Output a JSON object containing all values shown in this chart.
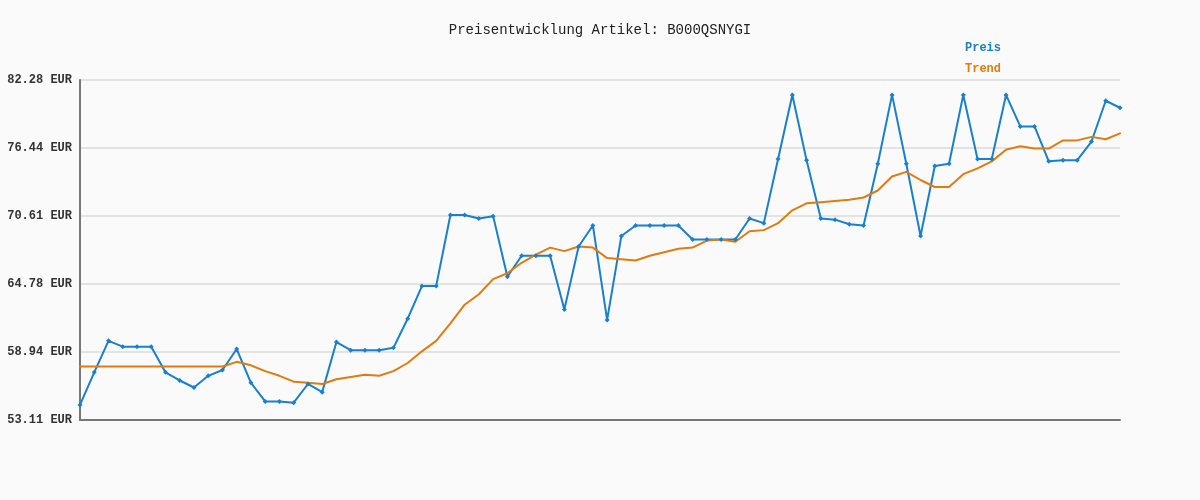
{
  "chart_data": {
    "type": "line",
    "title": "Preisentwicklung Artikel: B000QSNYGI",
    "categories": [
      null,
      null,
      null,
      null,
      null,
      null,
      null,
      null,
      null,
      null,
      null,
      null,
      null,
      null,
      null,
      null,
      null,
      null,
      null,
      null,
      null,
      null,
      null,
      null,
      null,
      null,
      null,
      null,
      null,
      null,
      null,
      null,
      null,
      null,
      null,
      null,
      null,
      null,
      null,
      null,
      null,
      null,
      null,
      null,
      null,
      null,
      null,
      null,
      null,
      null,
      null,
      null,
      null,
      null,
      null,
      null,
      null,
      null,
      null,
      null,
      null,
      null,
      null,
      null,
      null,
      null,
      null,
      null,
      null,
      null,
      null,
      null,
      null,
      null
    ],
    "series": [
      {
        "name": "Preis",
        "color": "#1a7fcc",
        "marker": "diamond",
        "values": [
          54.4,
          57.2,
          59.9,
          59.4,
          59.4,
          59.4,
          57.2,
          56.5,
          55.9,
          56.9,
          57.4,
          59.2,
          56.3,
          54.7,
          54.7,
          54.6,
          56.2,
          55.5,
          59.8,
          59.1,
          59.1,
          59.1,
          59.3,
          61.8,
          64.6,
          64.6,
          70.7,
          70.7,
          70.4,
          70.6,
          65.4,
          67.2,
          67.2,
          67.2,
          62.6,
          68.0,
          69.8,
          61.7,
          68.9,
          69.8,
          69.8,
          69.8,
          69.8,
          68.6,
          68.6,
          68.6,
          68.6,
          70.4,
          70.0,
          75.5,
          81.0,
          75.4,
          70.4,
          70.3,
          69.9,
          69.8,
          75.1,
          81.0,
          75.1,
          68.9,
          74.9,
          75.1,
          81.0,
          75.5,
          75.5,
          81.0,
          78.3,
          78.3,
          75.3,
          75.4,
          75.4,
          77.0,
          80.5,
          79.9
        ]
      },
      {
        "name": "Trend",
        "color": "#e07b10",
        "marker": "none",
        "values": [
          57.7,
          57.7,
          57.7,
          57.7,
          57.7,
          57.7,
          57.7,
          57.7,
          57.7,
          57.7,
          57.7,
          58.1,
          57.8,
          57.3,
          56.9,
          56.4,
          56.3,
          56.2,
          56.6,
          56.8,
          57.0,
          56.9,
          57.3,
          58.0,
          59.0,
          59.9,
          61.4,
          63.0,
          63.9,
          65.2,
          65.7,
          66.6,
          67.3,
          67.9,
          67.6,
          68.0,
          67.9,
          67.0,
          66.9,
          66.8,
          67.2,
          67.5,
          67.8,
          67.9,
          68.5,
          68.6,
          68.4,
          69.3,
          69.4,
          70.0,
          71.1,
          71.7,
          71.8,
          71.9,
          72.0,
          72.2,
          72.8,
          74.0,
          74.4,
          73.7,
          73.1,
          73.1,
          74.2,
          74.7,
          75.3,
          76.3,
          76.6,
          76.4,
          76.4,
          77.1,
          77.1,
          77.4,
          77.2,
          77.7
        ]
      }
    ],
    "ylim": [
      53.11,
      82.28
    ],
    "yticks": [
      {
        "value": 53.11,
        "label": "53.11 EUR"
      },
      {
        "value": 58.94,
        "label": "58.94 EUR"
      },
      {
        "value": 64.78,
        "label": "64.78 EUR"
      },
      {
        "value": 70.61,
        "label": "70.61 EUR"
      },
      {
        "value": 76.44,
        "label": "76.44 EUR"
      },
      {
        "value": 82.28,
        "label": "82.28 EUR"
      }
    ],
    "grid": "y",
    "legend": "top right",
    "line_style": "solid"
  }
}
